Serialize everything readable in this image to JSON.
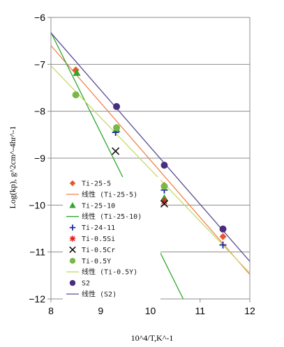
{
  "chart_data": {
    "type": "scatter",
    "xlabel": "10^4/T,K^-1",
    "ylabel": "Log(kp), g^2cm^-4hr^-1",
    "xlim": [
      8,
      12
    ],
    "ylim": [
      -12,
      -6
    ],
    "xticks": [
      8,
      9,
      10,
      11,
      12
    ],
    "yticks": [
      -6,
      -7,
      -8,
      -9,
      -10,
      -11,
      -12
    ],
    "grid": "horizontal",
    "legend_position": "bottom-left",
    "series": [
      {
        "name": "Ti-25-5",
        "kind": "points",
        "marker": "diamond",
        "color": "#e8562a",
        "points": [
          [
            8.5,
            -7.12
          ],
          [
            9.32,
            -8.35
          ],
          [
            10.28,
            -9.58
          ],
          [
            11.46,
            -10.67
          ]
        ]
      },
      {
        "name": "线性 (Ti-25-5)",
        "kind": "trend",
        "color": "#f0824a",
        "line": [
          [
            8,
            -6.6
          ],
          [
            12,
            -11.48
          ]
        ]
      },
      {
        "name": "Ti-25-10",
        "kind": "points",
        "marker": "triangle",
        "color": "#2fa82f",
        "points": [
          [
            8.52,
            -7.18
          ],
          [
            9.32,
            -8.38
          ],
          [
            10.28,
            -9.85
          ]
        ]
      },
      {
        "name": "线性 (Ti-25-10)",
        "kind": "trend",
        "color": "#2fa82f",
        "line": [
          [
            8,
            -6.32
          ],
          [
            10.66,
            -12
          ]
        ]
      },
      {
        "name": "Ti-24-11",
        "kind": "points",
        "marker": "plus",
        "color": "#1f2aa0",
        "points": [
          [
            9.3,
            -8.45
          ],
          [
            10.28,
            -9.68
          ],
          [
            11.46,
            -10.85
          ]
        ]
      },
      {
        "name": "Ti-0.5Si",
        "kind": "points",
        "marker": "asterisk",
        "color": "#e02020",
        "points": [
          [
            10.28,
            -9.92
          ]
        ]
      },
      {
        "name": "Ti-0.5Cr",
        "kind": "points",
        "marker": "x",
        "color": "#111111",
        "points": [
          [
            9.3,
            -8.85
          ],
          [
            10.28,
            -9.97
          ]
        ]
      },
      {
        "name": "Ti-0.5Y",
        "kind": "points",
        "marker": "circle",
        "color": "#7ab648",
        "points": [
          [
            8.5,
            -7.65
          ],
          [
            9.32,
            -8.35
          ],
          [
            10.28,
            -9.6
          ]
        ]
      },
      {
        "name": "线性 (Ti-0.5Y)",
        "kind": "trend",
        "color": "#c8d86a",
        "line": [
          [
            8,
            -7.03
          ],
          [
            12,
            -11.45
          ]
        ]
      },
      {
        "name": "S2",
        "kind": "points",
        "marker": "circle",
        "color": "#4a2d7e",
        "points": [
          [
            9.32,
            -7.9
          ],
          [
            10.28,
            -9.15
          ],
          [
            11.46,
            -10.51
          ]
        ]
      },
      {
        "name": "线性 (S2)",
        "kind": "trend",
        "color": "#5a4a90",
        "line": [
          [
            8,
            -6.33
          ],
          [
            12,
            -11.2
          ]
        ]
      }
    ]
  }
}
